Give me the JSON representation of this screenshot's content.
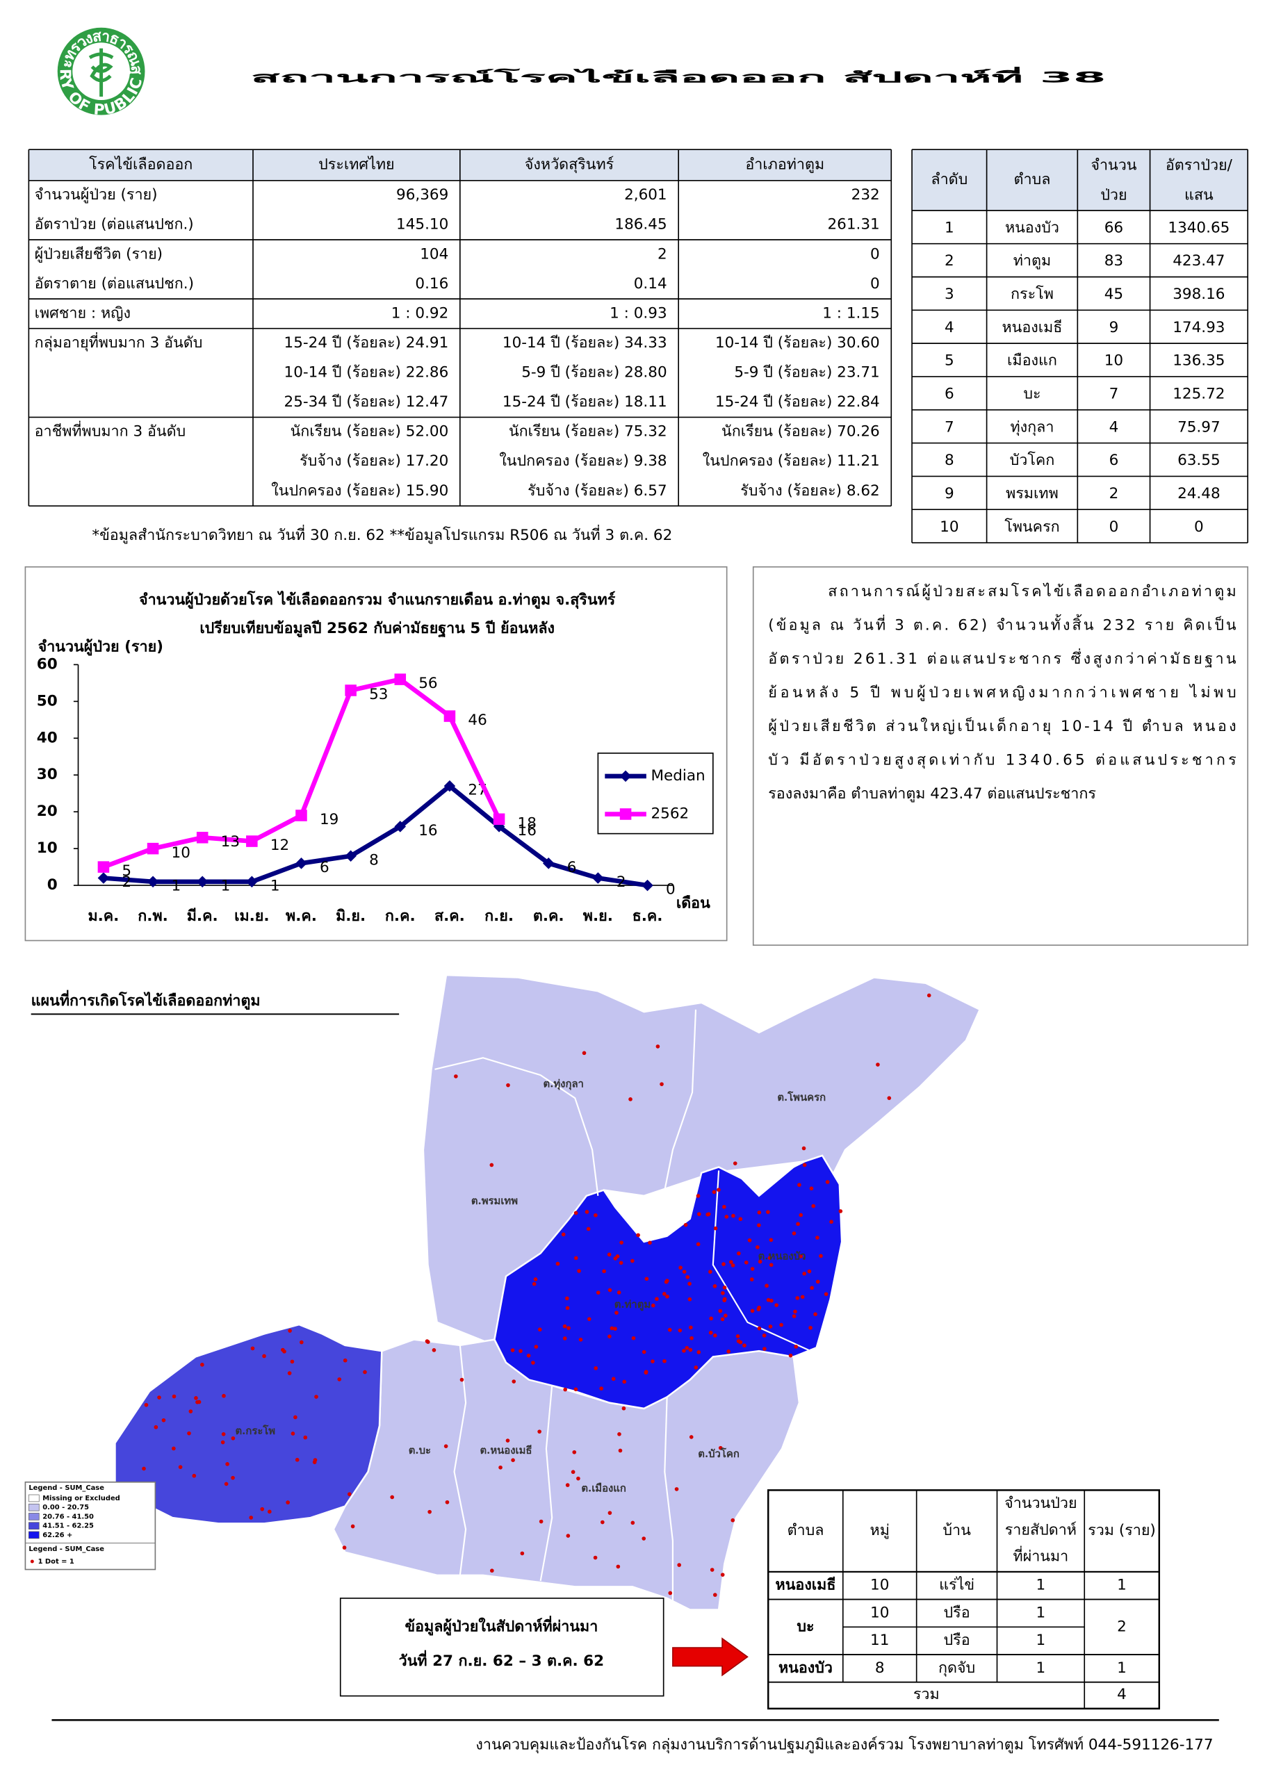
{
  "header": {
    "title": "สถานการณ์โรคไข้เลือดออก สัปดาห์ที่ 38"
  },
  "logo": {
    "top_text": "กระทรวงสาธารณสุข",
    "bottom_text": "MINISTRY OF PUBLIC HEALTH"
  },
  "main_table": {
    "header": [
      "โรคไข้เลือดออก",
      "ประเทศไทย",
      "จังหวัดสุรินทร์",
      "อำเภอท่าตูม"
    ],
    "groups": [
      {
        "rows": [
          [
            "จำนวนผู้ป่วย (ราย)",
            "96,369",
            "2,601",
            "232"
          ],
          [
            "อัตราป่วย (ต่อแสนปชก.)",
            "145.10",
            "186.45",
            "261.31"
          ]
        ]
      },
      {
        "rows": [
          [
            "ผู้ป่วยเสียชีวิต (ราย)",
            "104",
            "2",
            "0"
          ],
          [
            "อัตราตาย (ต่อแสนปชก.)",
            "0.16",
            "0.14",
            "0"
          ]
        ]
      },
      {
        "rows": [
          [
            "เพศชาย : หญิง",
            "1 : 0.92",
            "1 : 0.93",
            "1 : 1.15"
          ]
        ]
      },
      {
        "label": "กลุ่มอายุที่พบมาก 3 อันดับ",
        "rows": [
          [
            "15-24 ปี (ร้อยละ) 24.91",
            "10-14 ปี (ร้อยละ) 34.33",
            "10-14 ปี (ร้อยละ) 30.60"
          ],
          [
            "10-14 ปี (ร้อยละ) 22.86",
            "5-9 ปี (ร้อยละ) 28.80",
            "5-9 ปี (ร้อยละ) 23.71"
          ],
          [
            "25-34 ปี (ร้อยละ) 12.47",
            "15-24 ปี (ร้อยละ) 18.11",
            "15-24 ปี (ร้อยละ) 22.84"
          ]
        ]
      },
      {
        "label": "อาชีพที่พบมาก 3 อันดับ",
        "rows": [
          [
            "นักเรียน (ร้อยละ) 52.00",
            "นักเรียน (ร้อยละ) 75.32",
            "นักเรียน (ร้อยละ) 70.26"
          ],
          [
            "รับจ้าง (ร้อยละ) 17.20",
            "ในปกครอง (ร้อยละ) 9.38",
            "ในปกครอง (ร้อยละ) 11.21"
          ],
          [
            "ในปกครอง (ร้อยละ) 15.90",
            "รับจ้าง (ร้อยละ) 6.57",
            "รับจ้าง (ร้อยละ) 8.62"
          ]
        ]
      }
    ]
  },
  "rank_table": {
    "header": [
      "ลำดับ",
      "ตำบล",
      [
        "จำนวน",
        "ป่วย"
      ],
      [
        "อัตราป่วย/",
        "แสน"
      ]
    ],
    "rows": [
      [
        "1",
        "หนองบัว",
        "66",
        "1340.65"
      ],
      [
        "2",
        "ท่าตูม",
        "83",
        "423.47"
      ],
      [
        "3",
        "กระโพ",
        "45",
        "398.16"
      ],
      [
        "4",
        "หนองเมธี",
        "9",
        "174.93"
      ],
      [
        "5",
        "เมืองแก",
        "10",
        "136.35"
      ],
      [
        "6",
        "บะ",
        "7",
        "125.72"
      ],
      [
        "7",
        "ทุ่งกุลา",
        "4",
        "75.97"
      ],
      [
        "8",
        "บัวโคก",
        "6",
        "63.55"
      ],
      [
        "9",
        "พรมเทพ",
        "2",
        "24.48"
      ],
      [
        "10",
        "โพนครก",
        "0",
        "0"
      ]
    ]
  },
  "footnote": "*ข้อมูลสำนักระบาดวิทยา ณ วันที่ 30 ก.ย. 62 **ข้อมูลโปรแกรม R506 ณ วันที่ 3 ต.ค. 62",
  "chart_data": {
    "type": "line",
    "title": [
      "จำนวนผู้ป่วยด้วยโรค  ไข้เลือดออกรวม  จำแนกรายเดือน  อ.ท่าตูม จ.สุรินทร์",
      "เปรียบเทียบข้อมูลปี  2562  กับค่ามัธยฐาน 5 ปี ย้อนหลัง"
    ],
    "y_label": "จำนวนผู้ป่วย (ราย)",
    "x_label": "เดือน",
    "categories": [
      "ม.ค.",
      "ก.พ.",
      "มี.ค.",
      "เม.ย.",
      "พ.ค.",
      "มิ.ย.",
      "ก.ค.",
      "ส.ค.",
      "ก.ย.",
      "ต.ค.",
      "พ.ย.",
      "ธ.ค."
    ],
    "series": [
      {
        "name": "Median",
        "color": "#000080",
        "marker": "diamond",
        "values": [
          2,
          1,
          1,
          1,
          6,
          8,
          16,
          27,
          16,
          6,
          2,
          0
        ]
      },
      {
        "name": "2562",
        "color": "#ff00ff",
        "marker": "square",
        "values": [
          5,
          10,
          13,
          12,
          19,
          53,
          56,
          46,
          18,
          null,
          null,
          null
        ]
      }
    ],
    "ylim": [
      0,
      60
    ],
    "yticks": [
      0,
      10,
      20,
      30,
      40,
      50,
      60
    ],
    "legend": "right",
    "data_labels": true
  },
  "summary": {
    "lines": [
      "สถานการณ์ผู้ป่วยสะสมโรคไข้เลือดออกอำเภอท่าตูม",
      "(ข้อมูล ณ วันที่ 3 ต.ค. 62) จำนวนทั้งสิ้น 232 ราย คิดเป็น",
      "อัตราป่วย 261.31 ต่อแสนประชากร ซึ่งสูงกว่าค่ามัธยฐาน",
      "ย้อนหลัง 5 ปี พบผู้ป่วยเพศหญิงมากกว่าเพศชาย ไม่พบ",
      "ผู้ป่วยเสียชีวิต  ส่วนใหญ่เป็นเด็กอายุ 10-14 ปี ตำบล หนอง",
      "บัว มีอัตราป่วยสูงสุดเท่ากับ 1340.65 ต่อแสนประชากร",
      "รองลงมาคือ ตำบลท่าตูม 423.47 ต่อแสนประชากร"
    ]
  },
  "map": {
    "title": "แผนที่การเกิดโรคไข้เลือดออกท่าตูม",
    "labels": [
      "ต.ทุ่งกุลา",
      "ต.โพนครก",
      "ต.พรมเทพ",
      "ต.ท่าตูม",
      "ต.หนองบัว",
      "ต.กระโพ",
      "ต.บะ",
      "ต.หนองเมธี",
      "ต.เมืองแก",
      "ต.บัวโคก"
    ],
    "legend": {
      "title": "Legend - SUM_Case",
      "items": [
        {
          "label": "Missing or Excluded",
          "color": "#ffffff"
        },
        {
          "label": "0.00 - 20.75",
          "color": "#c4c4f0"
        },
        {
          "label": "20.76 - 41.50",
          "color": "#8a8ae6"
        },
        {
          "label": "41.51 - 62.25",
          "color": "#4646dc"
        },
        {
          "label": "62.26 +",
          "color": "#1414ee"
        }
      ],
      "dot_title": "Legend - SUM_Case",
      "dot_note": "1 Dot = 1"
    }
  },
  "week_box": {
    "lines": [
      "ข้อมูลผู้ป่วยในสัปดาห์ที่ผ่านมา",
      "วันที่ 27 ก.ย. 62 – 3 ต.ค. 62"
    ]
  },
  "week_table": {
    "header": [
      "ตำบล",
      "หมู่",
      "บ้าน",
      [
        "จำนวนป่วย",
        "รายสัปดาห์",
        "ที่ผ่านมา"
      ],
      "รวม (ราย)"
    ],
    "rows": [
      {
        "tambon": "หนองเมธี",
        "entries": [
          [
            "10",
            "แร่ไข่",
            "1"
          ]
        ],
        "total": "1"
      },
      {
        "tambon": "บะ",
        "entries": [
          [
            "10",
            "ปรือ",
            "1"
          ],
          [
            "11",
            "ปรือ",
            "1"
          ]
        ],
        "total": "2"
      },
      {
        "tambon": "หนองบัว",
        "entries": [
          [
            "8",
            "กุดจับ",
            "1"
          ]
        ],
        "total": "1"
      }
    ],
    "sum_label": "รวม",
    "sum": "4"
  },
  "footer": "งานควบคุมและป้องกันโรค กลุ่มงานบริการด้านปฐมภูมิและองค์รวม  โรงพยาบาลท่าตูม  โทรศัพท์ 044-591126-177"
}
